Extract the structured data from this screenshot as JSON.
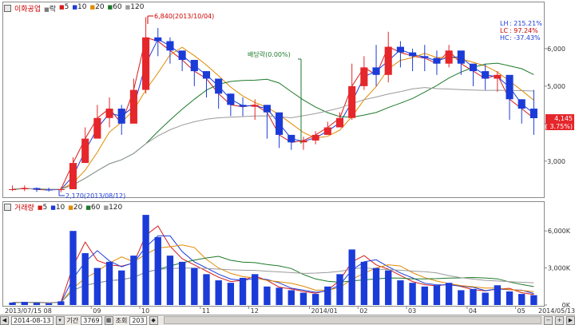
{
  "price_panel": {
    "legend": {
      "name": "이화공업",
      "items": [
        {
          "label": "락",
          "color": "#7a7a7a"
        },
        {
          "label": "5",
          "color": "#d81b1b"
        },
        {
          "label": "10",
          "color": "#1b3bd8"
        },
        {
          "label": "20",
          "color": "#e08a00"
        },
        {
          "label": "60",
          "color": "#1e7a2a"
        },
        {
          "label": "120",
          "color": "#9a9a9a"
        }
      ]
    },
    "y_ticks": [
      "6,000",
      "5,000",
      "4,000",
      "3,000"
    ],
    "annotations": {
      "high": "6,840(2013/10/04)",
      "low": "2,170(2013/08/12)",
      "dividend": "배당락(0.00%)"
    },
    "stats": [
      {
        "label": "LH",
        "value": ": 215.21%"
      },
      {
        "label": "LC",
        "value": ":  97.24%"
      },
      {
        "label": "HC",
        "value": ": -37.43%"
      }
    ],
    "last_price": "4,145",
    "last_change": "( 3.75%)"
  },
  "volume_panel": {
    "legend": {
      "name": "거래량",
      "items": [
        {
          "label": "5",
          "color": "#d81b1b"
        },
        {
          "label": "10",
          "color": "#1b3bd8"
        },
        {
          "label": "20",
          "color": "#e08a00"
        },
        {
          "label": "60",
          "color": "#1e7a2a"
        },
        {
          "label": "120",
          "color": "#9a9a9a"
        }
      ]
    },
    "y_ticks": [
      "6,000K",
      "3,000K",
      "0K"
    ]
  },
  "x_axis": {
    "labels": [
      "2013/07/15 08",
      "09",
      "10",
      "11",
      "12",
      "2014/01",
      "02",
      "03",
      "04",
      "05",
      "2014/05/13"
    ]
  },
  "status_bar": {
    "date": "2014-08-13",
    "period_label": "기간",
    "count": "3769",
    "query_label": "조회",
    "query_count": "203"
  },
  "chart_data": [
    {
      "type": "candlestick",
      "title": "이화공업",
      "ylim": [
        2100,
        7000
      ],
      "moving_averages": [
        "5",
        "10",
        "20",
        "60",
        "120"
      ],
      "x": [
        "2013-07-15",
        "2013-07-22",
        "2013-07-29",
        "2013-08-05",
        "2013-08-12",
        "2013-08-19",
        "2013-08-26",
        "2013-09-02",
        "2013-09-09",
        "2013-09-16",
        "2013-09-23",
        "2013-09-30",
        "2013-10-07",
        "2013-10-14",
        "2013-10-21",
        "2013-10-28",
        "2013-11-04",
        "2013-11-11",
        "2013-11-18",
        "2013-11-25",
        "2013-12-02",
        "2013-12-09",
        "2013-12-16",
        "2013-12-23",
        "2013-12-30",
        "2014-01-06",
        "2014-01-13",
        "2014-01-20",
        "2014-01-27",
        "2014-02-03",
        "2014-02-10",
        "2014-02-17",
        "2014-02-24",
        "2014-03-03",
        "2014-03-10",
        "2014-03-17",
        "2014-03-24",
        "2014-03-31",
        "2014-04-07",
        "2014-04-14",
        "2014-04-21",
        "2014-04-28",
        "2014-05-05",
        "2014-05-12"
      ],
      "close": [
        2250,
        2280,
        2240,
        2230,
        2250,
        2950,
        3600,
        4150,
        4400,
        4000,
        4900,
        6300,
        6200,
        5950,
        5700,
        5400,
        5200,
        4800,
        4500,
        4450,
        4500,
        4300,
        3700,
        3500,
        3550,
        3700,
        3900,
        4150,
        5000,
        5500,
        5300,
        6050,
        5900,
        5800,
        5750,
        5600,
        5950,
        5600,
        5400,
        5200,
        5300,
        4650,
        4400,
        4145
      ],
      "high": [
        2350,
        2350,
        2300,
        2290,
        2300,
        3100,
        3900,
        4500,
        4700,
        4500,
        5200,
        6840,
        6550,
        6300,
        5900,
        5600,
        5400,
        5000,
        4800,
        4700,
        4650,
        4500,
        3850,
        3650,
        3650,
        3800,
        4050,
        4300,
        5600,
        5800,
        6100,
        6450,
        6200,
        6000,
        6100,
        5950,
        6100,
        5800,
        5600,
        5600,
        5400,
        5100,
        4650,
        4900
      ],
      "low": [
        2200,
        2200,
        2180,
        2190,
        2170,
        2300,
        3000,
        3800,
        3900,
        3700,
        4000,
        4800,
        5800,
        5600,
        5400,
        5000,
        4700,
        4400,
        4200,
        4200,
        4100,
        3600,
        3350,
        3300,
        3300,
        3450,
        3700,
        3950,
        4100,
        4900,
        5000,
        5100,
        5500,
        5400,
        5400,
        5300,
        5500,
        5300,
        5000,
        4900,
        4850,
        4100,
        4000,
        3700
      ],
      "annotation": "배당락(0.00%)"
    },
    {
      "type": "bar",
      "title": "거래량",
      "ylim": [
        0,
        7500
      ],
      "unit": "K",
      "x": [
        "2013-07-15",
        "2013-07-22",
        "2013-07-29",
        "2013-08-05",
        "2013-08-12",
        "2013-08-19",
        "2013-08-26",
        "2013-09-02",
        "2013-09-09",
        "2013-09-16",
        "2013-09-23",
        "2013-09-30",
        "2013-10-07",
        "2013-10-14",
        "2013-10-21",
        "2013-10-28",
        "2013-11-04",
        "2013-11-11",
        "2013-11-18",
        "2013-11-25",
        "2013-12-02",
        "2013-12-09",
        "2013-12-16",
        "2013-12-23",
        "2013-12-30",
        "2014-01-06",
        "2014-01-13",
        "2014-01-20",
        "2014-01-27",
        "2014-02-03",
        "2014-02-10",
        "2014-02-17",
        "2014-02-24",
        "2014-03-03",
        "2014-03-10",
        "2014-03-17",
        "2014-03-24",
        "2014-03-31",
        "2014-04-07",
        "2014-04-14",
        "2014-04-21",
        "2014-04-28",
        "2014-05-05",
        "2014-05-12"
      ],
      "values": [
        200,
        250,
        180,
        150,
        300,
        6000,
        4200,
        3000,
        3500,
        2800,
        4000,
        7300,
        5500,
        4000,
        3500,
        3000,
        2500,
        2000,
        1800,
        2200,
        2500,
        1500,
        1400,
        1200,
        1000,
        900,
        1500,
        2500,
        4500,
        3500,
        3000,
        2800,
        2000,
        1800,
        1500,
        1600,
        1800,
        1200,
        1300,
        1000,
        1600,
        1100,
        900,
        800
      ]
    }
  ]
}
